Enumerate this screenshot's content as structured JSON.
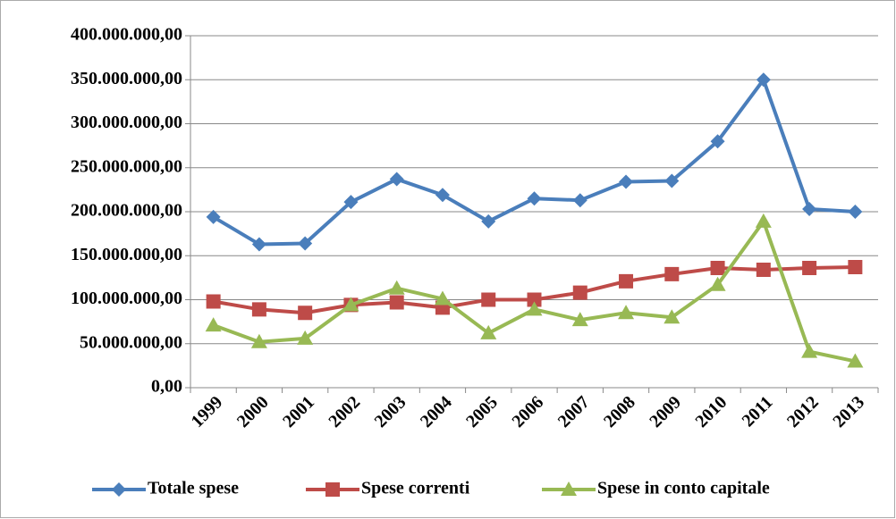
{
  "chart_data": {
    "type": "line",
    "categories": [
      "1999",
      "2000",
      "2001",
      "2002",
      "2003",
      "2004",
      "2005",
      "2006",
      "2007",
      "2008",
      "2009",
      "2010",
      "2011",
      "2012",
      "2013"
    ],
    "series": [
      {
        "name": "Totale spese",
        "color": "#4a7ebb",
        "marker": "diamond",
        "values": [
          194000000,
          163000000,
          164000000,
          211000000,
          237000000,
          219000000,
          189000000,
          215000000,
          213000000,
          234000000,
          235000000,
          280000000,
          350000000,
          203000000,
          200000000
        ]
      },
      {
        "name": "Spese correnti",
        "color": "#be4b48",
        "marker": "square",
        "values": [
          98000000,
          89000000,
          85000000,
          94000000,
          97000000,
          91000000,
          100000000,
          100000000,
          108000000,
          121000000,
          129000000,
          136000000,
          134000000,
          136000000,
          137000000
        ]
      },
      {
        "name": "Spese in conto capitale",
        "color": "#98b954",
        "marker": "triangle",
        "values": [
          71000000,
          52000000,
          56000000,
          94000000,
          113000000,
          101000000,
          62000000,
          89000000,
          77000000,
          85000000,
          80000000,
          117000000,
          189000000,
          41000000,
          30000000
        ]
      }
    ],
    "ylim": [
      0,
      400000000
    ],
    "yticks": [
      {
        "value": 0,
        "label": "0,00"
      },
      {
        "value": 50000000,
        "label": "50.000.000,00"
      },
      {
        "value": 100000000,
        "label": "100.000.000,00"
      },
      {
        "value": 150000000,
        "label": "150.000.000,00"
      },
      {
        "value": 200000000,
        "label": "200.000.000,00"
      },
      {
        "value": 250000000,
        "label": "250.000.000,00"
      },
      {
        "value": 300000000,
        "label": "300.000.000,00"
      },
      {
        "value": 350000000,
        "label": "350.000.000,00"
      },
      {
        "value": 400000000,
        "label": "400.000.000,00"
      }
    ],
    "grid": true,
    "legend": "bottom"
  }
}
